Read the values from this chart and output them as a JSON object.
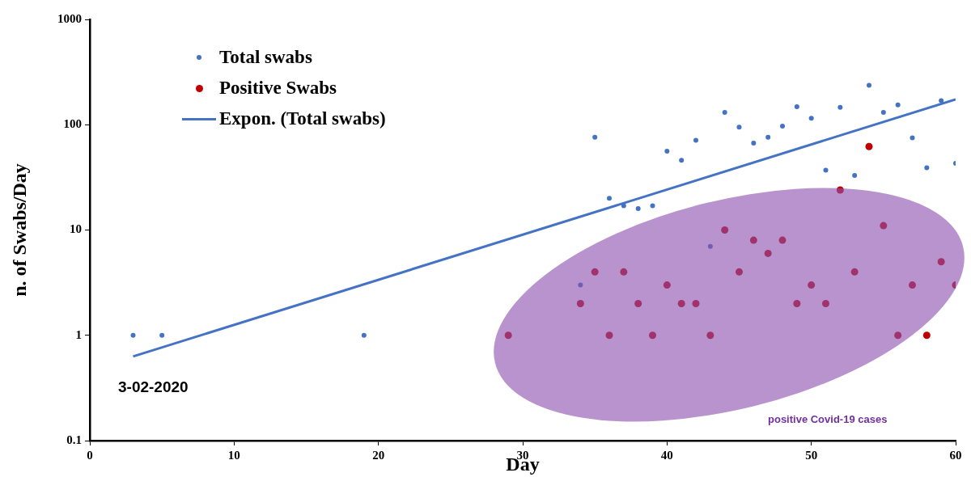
{
  "chart_data": {
    "type": "scatter",
    "xlabel": "Day",
    "ylabel": "n. of Swabs/Day",
    "xlim": [
      0,
      60
    ],
    "xticks": [
      0,
      10,
      20,
      30,
      40,
      50,
      60
    ],
    "ylim": [
      0.1,
      1000
    ],
    "yticks": [
      0.1,
      1,
      10,
      100,
      1000
    ],
    "log": "y",
    "grid": false,
    "legend": "top left",
    "series": [
      {
        "name": "Total swabs",
        "color": "#4472c4",
        "marker": "circle",
        "x": [
          3,
          5,
          19,
          34,
          35,
          36,
          37,
          38,
          39,
          40,
          41,
          42,
          43,
          44,
          45,
          46,
          47,
          48,
          49,
          50,
          51,
          52,
          53,
          54,
          55,
          56,
          57,
          58,
          59,
          60
        ],
        "values": [
          1,
          1,
          1,
          3,
          76,
          20,
          17,
          16,
          17,
          56,
          46,
          71,
          7,
          131,
          95,
          67,
          76,
          97,
          148,
          115,
          37,
          146,
          33,
          237,
          131,
          154,
          75,
          39,
          169,
          43
        ]
      },
      {
        "name": "Positive Swabs",
        "color": "#c00000",
        "marker": "circle",
        "x": [
          29,
          34,
          35,
          36,
          37,
          38,
          39,
          40,
          41,
          42,
          43,
          44,
          45,
          46,
          47,
          48,
          49,
          50,
          51,
          52,
          53,
          54,
          55,
          56,
          57,
          58,
          59,
          60
        ],
        "values": [
          1,
          2,
          4,
          1,
          4,
          2,
          1,
          3,
          2,
          2,
          1,
          10,
          4,
          8,
          6,
          8,
          2,
          3,
          2,
          24,
          4,
          62,
          11,
          1,
          3,
          1,
          5,
          3
        ]
      },
      {
        "name": "Expon. (Total swabs)",
        "type": "line",
        "marker": "none",
        "color": "#4472c4",
        "x": [
          3,
          60
        ],
        "values": [
          0.63,
          174
        ]
      }
    ],
    "annotations": [
      "3-02-2020",
      "positive Covid-19 cases"
    ]
  }
}
